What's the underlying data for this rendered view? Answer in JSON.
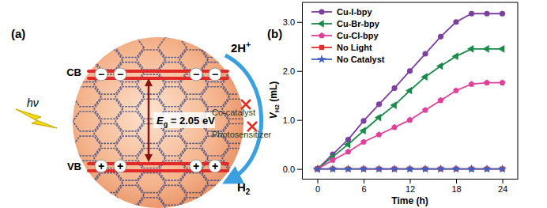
{
  "diagram": {
    "panel_label": "(a)",
    "light": "hν",
    "conduction_band": "CB",
    "valence_band": "VB",
    "band_gap": "Eg = 2.05 eV",
    "electron": "−",
    "hole": "+",
    "reactant": "2H+",
    "product": "H2",
    "absent": [
      "Co-catalyst",
      "Photosensitizer"
    ]
  },
  "chart_data": {
    "type": "line",
    "title": "(b)",
    "x_label": "Time (h)",
    "y_label": "VH2 (mL)",
    "x": [
      0,
      2,
      4,
      6,
      8,
      10,
      12,
      14,
      16,
      18,
      20,
      22,
      24
    ],
    "series": [
      {
        "name": "Cu-I-bpy",
        "color": "#7b3fa0",
        "marker": "circle",
        "values": [
          0,
          0.3,
          0.6,
          0.98,
          1.32,
          1.65,
          2.0,
          2.35,
          2.7,
          3.0,
          3.17,
          3.17,
          3.17
        ]
      },
      {
        "name": "Cu-Br-bpy",
        "color": "#1a8a4a",
        "marker": "triangle-left",
        "values": [
          0,
          0.25,
          0.5,
          0.78,
          1.05,
          1.3,
          1.6,
          1.88,
          2.1,
          2.3,
          2.45,
          2.45,
          2.45
        ]
      },
      {
        "name": "Cu-Cl-bpy",
        "color": "#e0409a",
        "marker": "pentagon",
        "values": [
          0,
          0.18,
          0.35,
          0.55,
          0.7,
          0.85,
          1.0,
          1.2,
          1.4,
          1.6,
          1.73,
          1.76,
          1.76
        ]
      },
      {
        "name": "No Light",
        "color": "#e03030",
        "marker": "square",
        "values": [
          0,
          0,
          0,
          0,
          0,
          0,
          0,
          0,
          0,
          0,
          0,
          0,
          0
        ]
      },
      {
        "name": "No Catalyst",
        "color": "#4060c0",
        "marker": "star",
        "values": [
          0,
          0,
          0,
          0,
          0,
          0,
          0,
          0,
          0,
          0,
          0,
          0,
          0
        ]
      }
    ],
    "xlim": [
      -2,
      26
    ],
    "xticks": [
      0,
      6,
      12,
      18,
      24
    ],
    "ylim": [
      -0.2,
      3.4
    ],
    "yticks": [
      {
        "value": 0,
        "label": "0.0"
      },
      {
        "value": 1,
        "label": "1.0"
      },
      {
        "value": 2,
        "label": "2.0"
      },
      {
        "value": 3,
        "label": "3.0"
      }
    ],
    "grid": false,
    "legend": "upper left"
  }
}
